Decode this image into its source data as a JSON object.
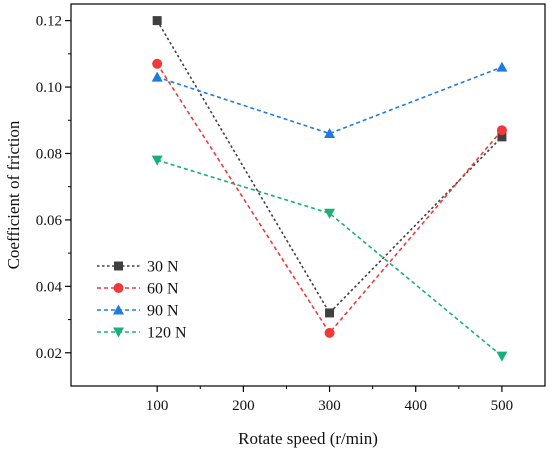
{
  "chart_data": {
    "type": "line",
    "title": "",
    "xlabel": "Rotate speed (r/min)",
    "ylabel": "Coefficient of friction",
    "x": [
      100,
      300,
      500
    ],
    "xlim": [
      0,
      550
    ],
    "ylim": [
      0.01,
      0.125
    ],
    "xticks": [
      "100",
      "200",
      "300",
      "400",
      "500"
    ],
    "yticks": [
      "0.02",
      "0.04",
      "0.06",
      "0.08",
      "0.10",
      "0.12"
    ],
    "grid": false,
    "legend_position": "bottom-left",
    "series": [
      {
        "name": "30  N",
        "values": [
          0.12,
          0.032,
          0.085
        ],
        "color": "#404040",
        "marker": "square",
        "line_style": "dotted"
      },
      {
        "name": "60  N",
        "values": [
          0.107,
          0.026,
          0.087
        ],
        "color": "#f03a3a",
        "marker": "circle",
        "line_style": "dashed"
      },
      {
        "name": "90  N",
        "values": [
          0.103,
          0.086,
          0.106
        ],
        "color": "#1e7be0",
        "marker": "triangle-up",
        "line_style": "dashed"
      },
      {
        "name": "120  N",
        "values": [
          0.078,
          0.062,
          0.019
        ],
        "color": "#1bb07a",
        "marker": "triangle-down",
        "line_style": "dashed"
      }
    ]
  }
}
